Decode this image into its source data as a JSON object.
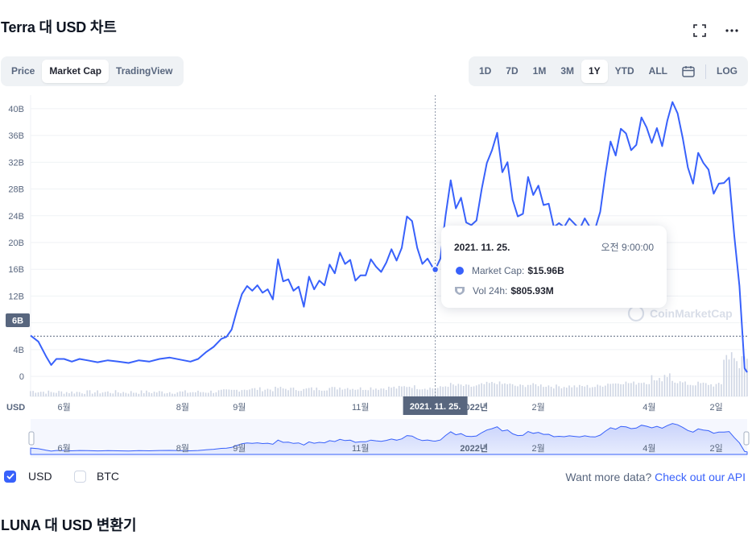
{
  "header": {
    "title": "Terra 대 USD 차트",
    "fullscreen_icon": "fullscreen-icon",
    "more_icon": "more-horizontal-icon"
  },
  "view_tabs": [
    {
      "label": "Price",
      "active": false
    },
    {
      "label": "Market Cap",
      "active": true
    },
    {
      "label": "TradingView",
      "active": false
    }
  ],
  "range_tabs": [
    {
      "label": "1D",
      "active": false
    },
    {
      "label": "7D",
      "active": false
    },
    {
      "label": "1M",
      "active": false
    },
    {
      "label": "3M",
      "active": false
    },
    {
      "label": "1Y",
      "active": true
    },
    {
      "label": "YTD",
      "active": false
    },
    {
      "label": "ALL",
      "active": false
    }
  ],
  "calendar_icon": "calendar-icon",
  "log_label": "LOG",
  "tooltip": {
    "date": "2021. 11. 25.",
    "time": "오전 9:00:00",
    "market_cap_label": "Market Cap:",
    "market_cap_value": "$15.96B",
    "vol_label": "Vol 24h:",
    "vol_value": "$805.93M"
  },
  "crosshair_date_label": "2021. 11. 25.",
  "current_value_label": "6B",
  "currency_axis_label": "USD",
  "watermark": "CoinMarketCap",
  "chart_data": {
    "type": "line",
    "series": [
      {
        "name": "Market Cap",
        "points": [
          [
            0,
            6.1
          ],
          [
            3,
            5.2
          ],
          [
            6,
            3.0
          ],
          [
            8,
            1.7
          ],
          [
            10,
            2.6
          ],
          [
            13,
            2.6
          ],
          [
            16,
            2.2
          ],
          [
            19,
            2.6
          ],
          [
            22,
            2.4
          ],
          [
            26,
            2.1
          ],
          [
            30,
            2.4
          ],
          [
            34,
            2.2
          ],
          [
            38,
            2.0
          ],
          [
            42,
            2.4
          ],
          [
            46,
            2.2
          ],
          [
            50,
            2.6
          ],
          [
            54,
            2.8
          ],
          [
            58,
            2.5
          ],
          [
            62,
            2.2
          ],
          [
            65,
            2.6
          ],
          [
            68,
            3.6
          ],
          [
            71,
            4.4
          ],
          [
            74,
            5.6
          ],
          [
            76,
            5.9
          ],
          [
            78,
            7.0
          ],
          [
            80,
            9.8
          ],
          [
            82,
            12.3
          ],
          [
            84,
            13.5
          ],
          [
            86,
            12.8
          ],
          [
            88,
            13.6
          ],
          [
            90,
            12.5
          ],
          [
            92,
            13.0
          ],
          [
            94,
            11.5
          ],
          [
            96,
            17.5
          ],
          [
            98,
            14.2
          ],
          [
            100,
            14.5
          ],
          [
            102,
            12.8
          ],
          [
            104,
            13.4
          ],
          [
            106,
            10.4
          ],
          [
            108,
            14.9
          ],
          [
            110,
            13.0
          ],
          [
            112,
            14.3
          ],
          [
            114,
            13.6
          ],
          [
            116,
            16.7
          ],
          [
            118,
            15.4
          ],
          [
            120,
            18.5
          ],
          [
            122,
            16.8
          ],
          [
            124,
            17.4
          ],
          [
            126,
            14.3
          ],
          [
            128,
            15.1
          ],
          [
            130,
            15.1
          ],
          [
            132,
            17.5
          ],
          [
            134,
            16.4
          ],
          [
            136,
            15.6
          ],
          [
            138,
            17.0
          ],
          [
            140,
            19.0
          ],
          [
            142,
            17.3
          ],
          [
            144,
            19.2
          ],
          [
            146,
            23.9
          ],
          [
            148,
            23.2
          ],
          [
            150,
            19.2
          ],
          [
            152,
            16.8
          ],
          [
            154,
            17.6
          ],
          [
            156,
            16.3
          ],
          [
            157,
            15.96
          ],
          [
            159,
            17.6
          ],
          [
            161,
            24.0
          ],
          [
            163,
            29.3
          ],
          [
            165,
            25.1
          ],
          [
            167,
            26.7
          ],
          [
            169,
            23.0
          ],
          [
            171,
            22.6
          ],
          [
            173,
            23.3
          ],
          [
            175,
            28.0
          ],
          [
            177,
            31.9
          ],
          [
            179,
            33.8
          ],
          [
            181,
            36.4
          ],
          [
            183,
            30.5
          ],
          [
            185,
            32.0
          ],
          [
            187,
            26.4
          ],
          [
            189,
            23.9
          ],
          [
            191,
            24.3
          ],
          [
            193,
            29.8
          ],
          [
            195,
            27.1
          ],
          [
            197,
            28.5
          ],
          [
            199,
            25.6
          ],
          [
            201,
            25.8
          ],
          [
            203,
            22.3
          ],
          [
            205,
            22.9
          ],
          [
            207,
            22.3
          ],
          [
            209,
            23.6
          ],
          [
            211,
            22.8
          ],
          [
            213,
            22.0
          ],
          [
            215,
            23.6
          ],
          [
            217,
            22.3
          ],
          [
            219,
            22.0
          ],
          [
            221,
            24.6
          ],
          [
            223,
            30.2
          ],
          [
            225,
            35.1
          ],
          [
            227,
            33.0
          ],
          [
            229,
            37.0
          ],
          [
            231,
            36.3
          ],
          [
            233,
            33.8
          ],
          [
            235,
            34.6
          ],
          [
            237,
            38.7
          ],
          [
            239,
            37.2
          ],
          [
            241,
            34.9
          ],
          [
            243,
            37.1
          ],
          [
            245,
            34.4
          ],
          [
            247,
            38.2
          ],
          [
            249,
            41.0
          ],
          [
            251,
            39.3
          ],
          [
            253,
            35.6
          ],
          [
            255,
            31.2
          ],
          [
            257,
            28.8
          ],
          [
            259,
            33.4
          ],
          [
            261,
            31.9
          ],
          [
            263,
            30.9
          ],
          [
            265,
            27.3
          ],
          [
            267,
            28.8
          ],
          [
            269,
            28.9
          ],
          [
            271,
            29.7
          ],
          [
            273,
            21.0
          ],
          [
            275,
            13.5
          ],
          [
            277,
            1.2
          ],
          [
            278,
            0.6
          ]
        ]
      }
    ],
    "x_axis_labels": [
      {
        "label": "6월",
        "pos": 13
      },
      {
        "label": "8월",
        "pos": 59
      },
      {
        "label": "9월",
        "pos": 81
      },
      {
        "label": "11월",
        "pos": 128
      },
      {
        "label": "2022년",
        "pos": 172
      },
      {
        "label": "2월",
        "pos": 197
      },
      {
        "label": "4월",
        "pos": 240
      },
      {
        "label": "2일",
        "pos": 266
      }
    ],
    "x_range": [
      0,
      278
    ],
    "y_ticks": [
      0,
      4,
      8,
      12,
      16,
      20,
      24,
      28,
      32,
      36,
      40
    ],
    "y_tick_labels": [
      "0",
      "4B",
      "8B",
      "12B",
      "16B",
      "20B",
      "24B",
      "28B",
      "32B",
      "36B",
      "40B"
    ],
    "ylim": [
      -3,
      43
    ],
    "y_unit": "USD (billions)",
    "volume_note": "volume bars shown below main chart",
    "navigator_labels": [
      "6월",
      "8월",
      "9월",
      "11월",
      "2022년",
      "2월",
      "4월",
      "2일"
    ],
    "grid": true,
    "line_color": "#3861fb",
    "highlight_x": 157
  },
  "checkboxes": [
    {
      "label": "USD",
      "checked": true
    },
    {
      "label": "BTC",
      "checked": false
    }
  ],
  "api_text": "Want more data?",
  "api_link": "Check out our API",
  "converter_title": "LUNA 대 USD 변환기"
}
